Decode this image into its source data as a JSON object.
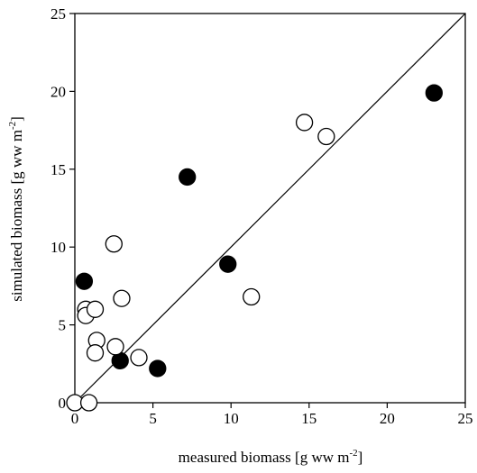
{
  "chart_data": {
    "type": "scatter",
    "xlabel": "measured biomass [g ww m",
    "xlabel_sup": "-2",
    "xlabel_end": "]",
    "ylabel": "simulated biomass [g ww m",
    "ylabel_sup": "-2",
    "ylabel_end": "]",
    "xlim": [
      0,
      25
    ],
    "ylim": [
      0,
      25
    ],
    "xticks": [
      "0",
      "5",
      "10",
      "15",
      "20",
      "25"
    ],
    "yticks": [
      "0",
      "5",
      "10",
      "15",
      "20",
      "25"
    ],
    "grid": false,
    "legend": "none",
    "reference_line": {
      "type": "1:1",
      "from": [
        0,
        0
      ],
      "to": [
        25,
        25
      ]
    },
    "series": [
      {
        "marker": "filled-circle",
        "color": "#000000",
        "points": [
          [
            0.6,
            7.8
          ],
          [
            2.9,
            2.7
          ],
          [
            5.3,
            2.2
          ],
          [
            7.2,
            14.5
          ],
          [
            9.8,
            8.9
          ],
          [
            23.0,
            19.9
          ]
        ]
      },
      {
        "marker": "open-circle",
        "color": "#000000",
        "points": [
          [
            0.0,
            0.0
          ],
          [
            0.9,
            0.0
          ],
          [
            0.7,
            6.0
          ],
          [
            0.7,
            5.6
          ],
          [
            1.3,
            6.0
          ],
          [
            1.4,
            4.0
          ],
          [
            1.3,
            3.2
          ],
          [
            2.5,
            10.2
          ],
          [
            2.6,
            3.6
          ],
          [
            3.0,
            6.7
          ],
          [
            4.1,
            2.9
          ],
          [
            11.3,
            6.8
          ],
          [
            14.7,
            18.0
          ],
          [
            16.1,
            17.1
          ]
        ]
      }
    ]
  }
}
